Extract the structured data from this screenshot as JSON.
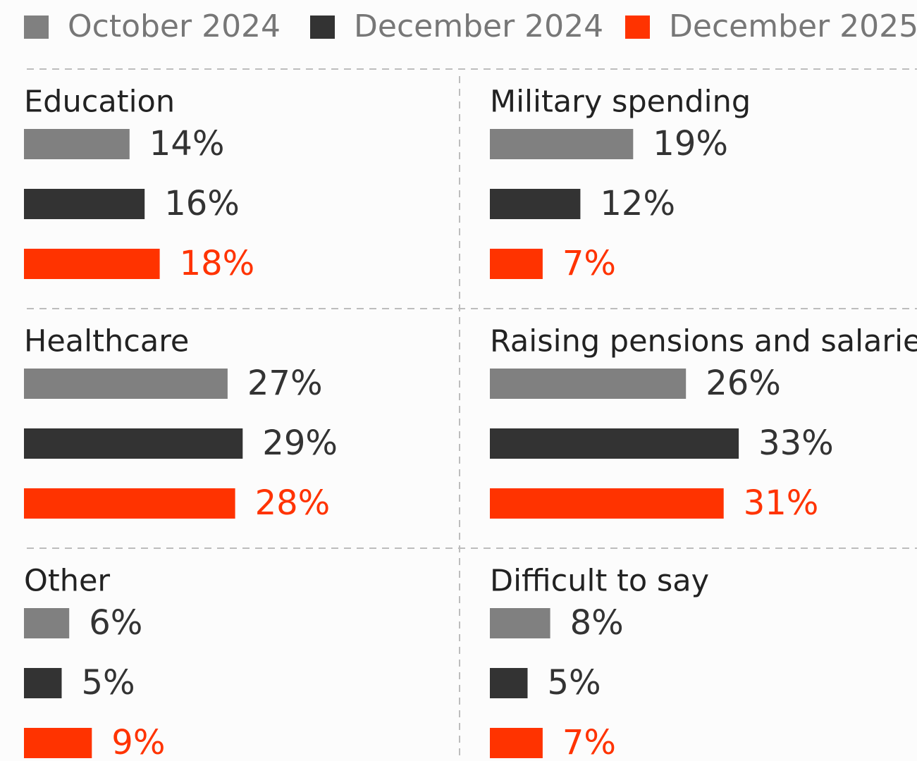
{
  "chart_data": {
    "type": "bar",
    "categories": [
      "Education",
      "Military spending",
      "Healthcare",
      "Raising pensions and salaries",
      "Other",
      "Difficult to say"
    ],
    "series": [
      {
        "name": "October 2024",
        "color": "#808080",
        "label_color": "#333333",
        "values": [
          14,
          19,
          27,
          26,
          6,
          8
        ],
        "value_labels": [
          "14%",
          "19%",
          "27%",
          "26%",
          "6%",
          "8%"
        ]
      },
      {
        "name": "December 2024",
        "color": "#333333",
        "label_color": "#333333",
        "values": [
          16,
          12,
          29,
          33,
          5,
          5
        ],
        "value_labels": [
          "16%",
          "12%",
          "29%",
          "33%",
          "5%",
          "5%"
        ]
      },
      {
        "name": "December 2025",
        "color": "#ff3300",
        "label_color": "#ff3300",
        "values": [
          18,
          7,
          28,
          31,
          9,
          7
        ],
        "value_labels": [
          "18%",
          "7%",
          "28%",
          "31%",
          "9%",
          "7%"
        ]
      }
    ]
  }
}
